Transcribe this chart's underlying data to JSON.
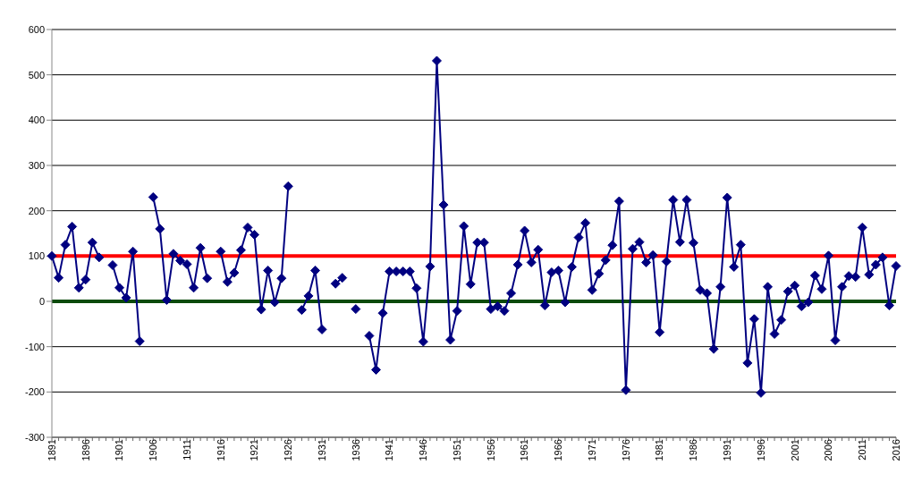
{
  "chart_data": {
    "type": "line",
    "categories": [
      "1891",
      null,
      null,
      null,
      null,
      "1896",
      null,
      null,
      null,
      null,
      "1901",
      null,
      null,
      null,
      null,
      "1906",
      null,
      null,
      null,
      null,
      "1911",
      null,
      null,
      null,
      null,
      "1916",
      null,
      null,
      null,
      null,
      "1921",
      null,
      null,
      null,
      null,
      "1926",
      null,
      null,
      null,
      null,
      "1931",
      null,
      null,
      null,
      null,
      "1936",
      null,
      null,
      null,
      null,
      "1941",
      null,
      null,
      null,
      null,
      "1946",
      null,
      null,
      null,
      null,
      "1951",
      null,
      null,
      null,
      null,
      "1956",
      null,
      null,
      null,
      null,
      "1961",
      null,
      null,
      null,
      null,
      "1966",
      null,
      null,
      null,
      null,
      "1971",
      null,
      null,
      null,
      null,
      "1976",
      null,
      null,
      null,
      null,
      "1981",
      null,
      null,
      null,
      null,
      "1986",
      null,
      null,
      null,
      null,
      "1991",
      null,
      null,
      null,
      null,
      "1996",
      null,
      null,
      null,
      null,
      "2001",
      null,
      null,
      null,
      null,
      "2006",
      null,
      null,
      null,
      null,
      "2011",
      null,
      null,
      null,
      null,
      "2016"
    ],
    "series": [
      {
        "color": "#000080",
        "values": [
          100,
          52,
          125,
          165,
          30,
          48,
          130,
          97,
          null,
          80,
          30,
          8,
          110,
          -88,
          null,
          230,
          160,
          3,
          105,
          90,
          82,
          30,
          118,
          51,
          null,
          110,
          43,
          63,
          113,
          163,
          147,
          -18,
          68,
          -2,
          51,
          254,
          null,
          -19,
          12,
          68,
          -62,
          null,
          39,
          52,
          null,
          -17,
          null,
          -76,
          -151,
          -26,
          66,
          66,
          66,
          66,
          29,
          -89,
          77,
          531,
          213,
          -85,
          -21,
          166,
          38,
          130,
          130,
          -17,
          -11,
          -21,
          18,
          81,
          156,
          86,
          114,
          -9,
          64,
          68,
          -2,
          76,
          141,
          173,
          25,
          61,
          91,
          124,
          221,
          -196,
          116,
          131,
          86,
          102,
          -68,
          88,
          224,
          131,
          224,
          129,
          25,
          18,
          -105,
          32,
          229,
          76,
          125,
          -136,
          -39,
          -202,
          32,
          -72,
          -41,
          22,
          35,
          -11,
          -2,
          57,
          27,
          101,
          -86,
          32,
          56,
          54,
          163,
          59,
          81,
          97,
          -9,
          78
        ]
      }
    ],
    "ref_lines": [
      {
        "axis": "y",
        "value": 100,
        "color": "#ff0000"
      },
      {
        "axis": "y",
        "value": 0,
        "color": "#0b4a0b"
      }
    ],
    "ylim": [
      -300,
      600
    ],
    "yticks": [
      -300,
      -200,
      -100,
      0,
      100,
      200,
      300,
      400,
      500,
      600
    ],
    "grid": "y",
    "marker": "diamond",
    "line_style": "solid",
    "legend": false
  }
}
